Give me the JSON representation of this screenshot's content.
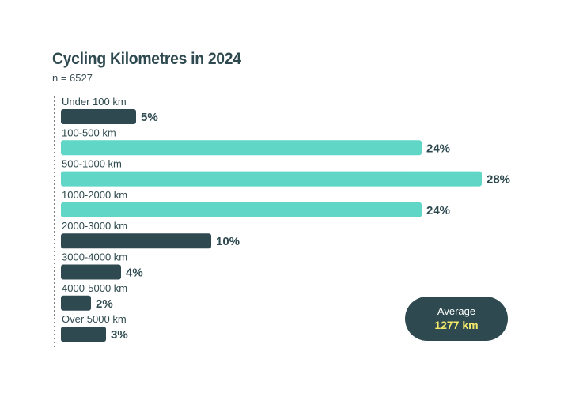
{
  "chart_data": {
    "type": "bar",
    "orientation": "horizontal",
    "title": "Cycling Kilometres in 2024",
    "subtitle": "n = 6527",
    "categories": [
      "Under 100 km",
      "100-500 km",
      "500-1000 km",
      "1000-2000 km",
      "2000-3000 km",
      "3000-4000 km",
      "4000-5000 km",
      "Over 5000 km"
    ],
    "values": [
      5,
      24,
      28,
      24,
      10,
      4,
      2,
      3
    ],
    "value_labels": [
      "5%",
      "24%",
      "28%",
      "24%",
      "10%",
      "4%",
      "2%",
      "3%"
    ],
    "highlighted": [
      false,
      true,
      true,
      true,
      false,
      false,
      false,
      false
    ],
    "xlim": [
      0,
      28
    ],
    "grid": false,
    "colors": {
      "highlight": "#5fd6c6",
      "default": "#2e4a50",
      "text": "#2f4a4f",
      "axis": "#555555"
    }
  },
  "average": {
    "label": "Average",
    "value": "1277 km",
    "colors": {
      "background": "#2e4a50",
      "label": "#ffffff",
      "value": "#f5e96a"
    }
  }
}
